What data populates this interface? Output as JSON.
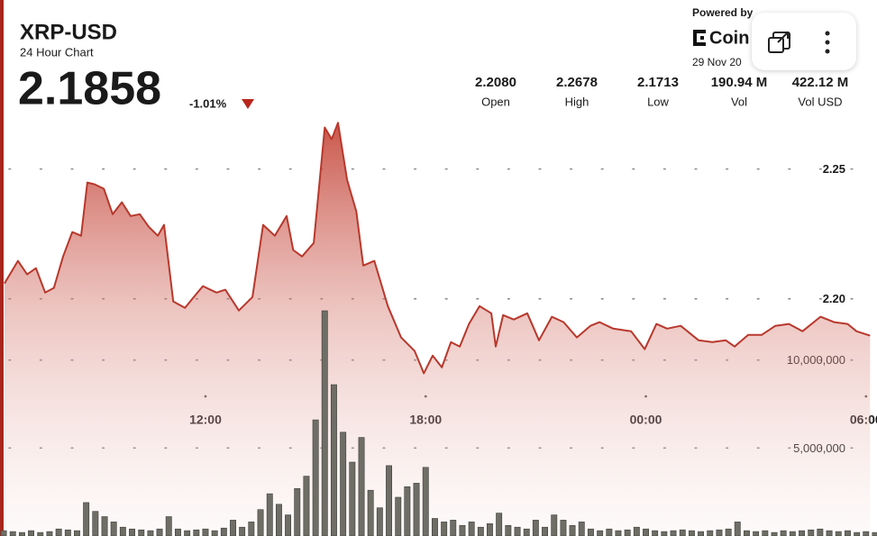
{
  "header": {
    "symbol": "XRP-USD",
    "subtitle": "24 Hour Chart",
    "price": "2.1858",
    "change": "-1.01%"
  },
  "stats": [
    {
      "value": "2.2080",
      "label": "Open"
    },
    {
      "value": "2.2678",
      "label": "High"
    },
    {
      "value": "2.1713",
      "label": "Low"
    },
    {
      "value": "190.94 M",
      "label": "Vol"
    },
    {
      "value": "422.12 M",
      "label": "Vol USD"
    }
  ],
  "brand": {
    "powered": "Powered by",
    "name": "Coin",
    "date": "29 Nov 20"
  },
  "chart_data": [
    {
      "type": "area",
      "color": "#b8382c",
      "x": [
        6.52,
        6.89,
        7.14,
        7.38,
        7.63,
        7.87,
        8.12,
        8.37,
        8.61,
        8.78,
        8.98,
        9.23,
        9.47,
        9.72,
        9.96,
        10.21,
        10.45,
        10.7,
        10.87,
        11.12,
        11.44,
        11.68,
        11.93,
        12.3,
        12.54,
        12.91,
        13.28,
        13.57,
        13.89,
        14.21,
        14.39,
        14.63,
        14.95,
        15.25,
        15.44,
        15.61,
        15.86,
        16.11,
        16.3,
        16.6,
        16.97,
        17.33,
        17.7,
        17.95,
        18.19,
        18.44,
        18.69,
        18.93,
        19.18,
        19.47,
        19.79,
        19.91,
        20.11,
        20.4,
        20.77,
        21.09,
        21.44,
        21.76,
        22.12,
        22.49,
        22.74,
        23.11,
        23.6,
        23.97,
        24.29,
        24.58,
        24.95,
        25.44,
        25.81,
        26.18,
        26.42,
        26.79,
        27.16,
        27.53,
        27.9,
        28.27,
        28.76,
        29.13,
        29.5,
        29.74,
        30.11
      ],
      "values": [
        2.2059,
        2.2146,
        2.2094,
        2.2118,
        2.2024,
        2.2042,
        2.2163,
        2.2257,
        2.2243,
        2.2448,
        2.2441,
        2.2424,
        2.2326,
        2.2372,
        2.2319,
        2.2326,
        2.2278,
        2.2243,
        2.2285,
        2.199,
        2.1965,
        2.2007,
        2.2049,
        2.2024,
        2.2035,
        2.1955,
        2.2007,
        2.2285,
        2.2243,
        2.2319,
        2.2188,
        2.2163,
        2.2215,
        2.266,
        2.2615,
        2.2678,
        2.2458,
        2.2337,
        2.2128,
        2.2146,
        2.1972,
        2.1851,
        2.1799,
        2.1713,
        2.1781,
        2.1736,
        2.1833,
        2.1816,
        2.1903,
        2.1972,
        2.1944,
        2.1816,
        2.1937,
        2.192,
        2.1944,
        2.184,
        2.1931,
        2.191,
        2.1851,
        2.1896,
        2.191,
        2.1885,
        2.1875,
        2.1806,
        2.1903,
        2.1885,
        2.1896,
        2.184,
        2.1833,
        2.184,
        2.1816,
        2.1861,
        2.1861,
        2.1896,
        2.1903,
        2.1875,
        2.1931,
        2.191,
        2.1903,
        2.1875,
        2.1858
      ],
      "xlim": [
        6.4,
        30.3
      ],
      "ylim": [
        2.11,
        2.27
      ],
      "xticks": [
        {
          "value": 12,
          "label": "12:00"
        },
        {
          "value": 18,
          "label": "18:00"
        },
        {
          "value": 24,
          "label": "00:00"
        },
        {
          "value": 30,
          "label": "06:00"
        }
      ],
      "yticks": [
        {
          "value": 2.2,
          "label": "2.20"
        },
        2.25
      ],
      "grid": true
    },
    {
      "type": "bar",
      "color": "#6e6e66",
      "x": [
        6.5,
        6.75,
        7,
        7.25,
        7.5,
        7.75,
        8,
        8.25,
        8.5,
        8.75,
        9,
        9.25,
        9.5,
        9.75,
        10,
        10.25,
        10.5,
        10.75,
        11,
        11.25,
        11.5,
        11.75,
        12,
        12.25,
        12.5,
        12.75,
        13,
        13.25,
        13.5,
        13.75,
        14,
        14.25,
        14.5,
        14.75,
        15,
        15.25,
        15.5,
        15.75,
        16,
        16.25,
        16.5,
        16.75,
        17,
        17.25,
        17.5,
        17.75,
        18,
        18.25,
        18.5,
        18.75,
        19,
        19.25,
        19.5,
        19.75,
        20,
        20.25,
        20.5,
        20.75,
        21,
        21.25,
        21.5,
        21.75,
        22,
        22.25,
        22.5,
        22.75,
        23,
        23.25,
        23.5,
        23.75,
        24,
        24.25,
        24.5,
        24.75,
        25,
        25.25,
        25.5,
        25.75,
        26,
        26.25,
        26.5,
        26.75,
        27,
        27.25,
        27.5,
        27.75,
        28,
        28.25,
        28.5,
        28.75,
        29,
        29.25,
        29.5,
        29.75,
        30,
        30.25
      ],
      "values": [
        300000,
        250000,
        200000,
        300000,
        200000,
        250000,
        400000,
        350000,
        300000,
        1900000,
        1400000,
        1100000,
        800000,
        500000,
        400000,
        350000,
        300000,
        400000,
        1100000,
        400000,
        300000,
        350000,
        400000,
        300000,
        450000,
        900000,
        500000,
        800000,
        1500000,
        2400000,
        1800000,
        1200000,
        2700000,
        3400000,
        6600000,
        12800000,
        8600000,
        5900000,
        4200000,
        5600000,
        2600000,
        1600000,
        4000000,
        2200000,
        2800000,
        3000000,
        3900000,
        1000000,
        800000,
        900000,
        600000,
        800000,
        500000,
        700000,
        1300000,
        600000,
        500000,
        400000,
        900000,
        500000,
        1200000,
        900000,
        600000,
        800000,
        400000,
        300000,
        400000,
        300000,
        350000,
        500000,
        400000,
        300000,
        250000,
        300000,
        350000,
        300000,
        250000,
        300000,
        350000,
        400000,
        800000,
        300000,
        250000,
        300000,
        200000,
        300000,
        250000,
        300000,
        350000,
        400000,
        300000,
        250000,
        300000,
        200000,
        250000,
        200000
      ],
      "xlim": [
        6.4,
        30.3
      ],
      "ylim": [
        0,
        15000000
      ],
      "yticks": [
        {
          "value": 5000000,
          "label": "5,000,000"
        },
        {
          "value": 10000000,
          "label": "10,000,000"
        }
      ],
      "grid": true
    }
  ]
}
